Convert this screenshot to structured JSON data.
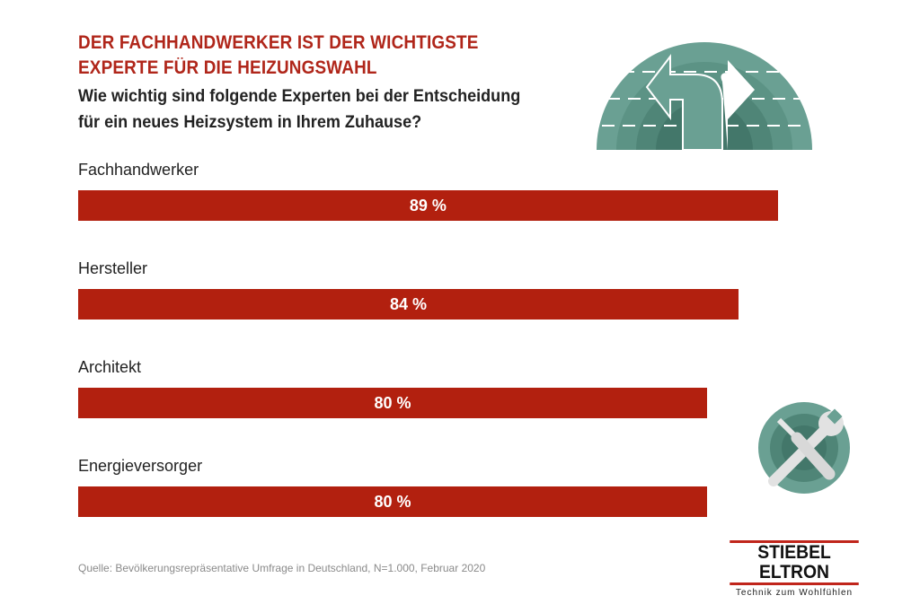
{
  "header": {
    "title_line1": "DER FACHHANDWERKER IST DER WICHTIGSTE",
    "title_line2": "EXPERTE FÜR DIE HEIZUNGSWAHL",
    "question_line1": "Wie wichtig sind folgende Experten bei der Entscheidung",
    "question_line2": "für ein neues Heizsystem in Ihrem Zuhause?"
  },
  "chart_data": {
    "type": "bar",
    "orientation": "horizontal",
    "categories": [
      "Fachhandwerker",
      "Hersteller",
      "Architekt",
      "Energieversorger"
    ],
    "values": [
      89,
      84,
      80,
      80
    ],
    "labels": [
      "89 %",
      "84 %",
      "80 %",
      "80 %"
    ],
    "xlim": [
      0,
      100
    ],
    "bar_color": "#b2200f"
  },
  "footer": {
    "source": "Quelle: Bevölkerungsrepräsentative Umfrage in Deutschland, N=1.000, Februar 2020"
  },
  "brand": {
    "name": "STIEBEL ELTRON",
    "tagline": "Technik zum Wohlfühlen"
  },
  "icons": {
    "top": "road-fork-icon",
    "bottom": "tools-icon"
  }
}
